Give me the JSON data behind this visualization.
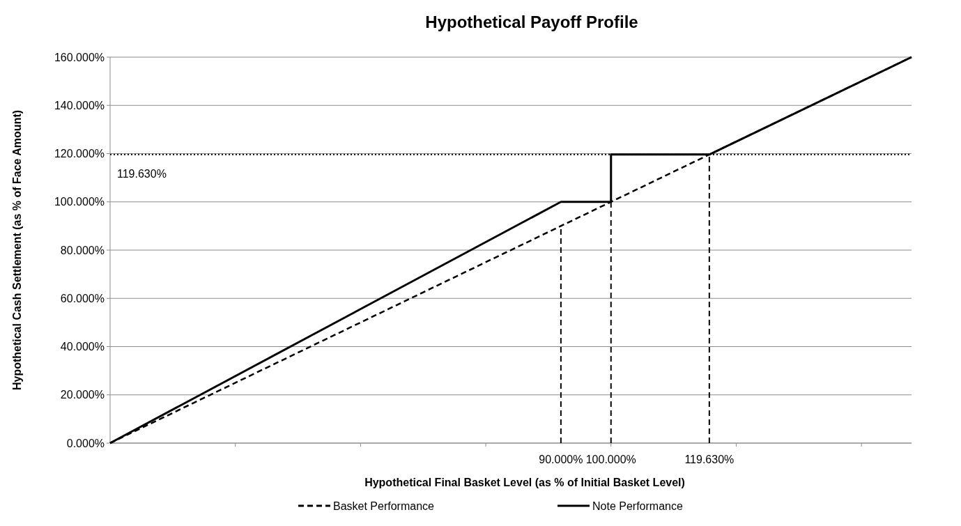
{
  "chart_data": {
    "type": "line",
    "title": "Hypothetical Payoff Profile",
    "xlabel": "Hypothetical Final Basket Level (as % of Initial Basket Level)",
    "ylabel": "Hypothetical Cash Settlement (as % of Face Amount)",
    "xlim": [
      0,
      160
    ],
    "ylim": [
      0,
      160
    ],
    "xticks": [
      {
        "value": 25,
        "label": null
      },
      {
        "value": 50,
        "label": null
      },
      {
        "value": 75,
        "label": null
      },
      {
        "value": 100,
        "label": null
      },
      {
        "value": 125,
        "label": null
      },
      {
        "value": 150,
        "label": null
      }
    ],
    "yticks": [
      {
        "value": 0,
        "label": "0.000%"
      },
      {
        "value": 20,
        "label": "20.000%"
      },
      {
        "value": 40,
        "label": "40.000%"
      },
      {
        "value": 60,
        "label": "60.000%"
      },
      {
        "value": 80,
        "label": "80.000%"
      },
      {
        "value": 100,
        "label": "100.000%"
      },
      {
        "value": 120,
        "label": "120.000%"
      },
      {
        "value": 140,
        "label": "140.000%"
      },
      {
        "value": 160,
        "label": "160.000%"
      }
    ],
    "grid": "y",
    "legend": "bottom",
    "marker": "none",
    "series": [
      {
        "name": "Basket Performance",
        "color": "#000000",
        "line_style": "dashed",
        "x": [
          0,
          160
        ],
        "values": [
          0,
          160
        ]
      },
      {
        "name": "Note Performance",
        "color": "#000000",
        "line_style": "solid",
        "x": [
          0,
          90,
          100,
          100,
          119.63,
          160
        ],
        "values": [
          0,
          100,
          100,
          119.63,
          119.63,
          160
        ]
      }
    ],
    "ref_lines": [
      {
        "axis": "y",
        "value": 119.63,
        "label": "119.630%",
        "line_style": "dotted",
        "color": "#000000"
      },
      {
        "axis": "x",
        "value": 90,
        "label": "90.000%",
        "line_style": "dashed",
        "color": "#000000"
      },
      {
        "axis": "x",
        "value": 100,
        "label": "100.000%",
        "line_style": "dashed",
        "color": "#000000"
      },
      {
        "axis": "x",
        "value": 119.63,
        "label": "119.630%",
        "line_style": "dashed",
        "color": "#000000"
      }
    ]
  }
}
